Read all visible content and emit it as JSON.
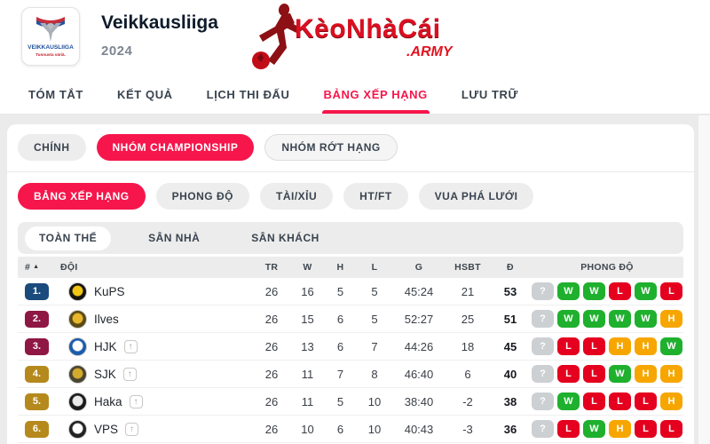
{
  "header": {
    "league_name": "Veikkausliiga",
    "season": "2024",
    "logo_text": "VEIKKAUSLIIGA",
    "logo_tagline": "Tunnusta väriä.",
    "brand_text": "KèoNhàCái",
    "brand_suffix": ".ARMY"
  },
  "nav_tabs": [
    {
      "label": "TÓM TẮT",
      "active": false
    },
    {
      "label": "KẾT QUẢ",
      "active": false
    },
    {
      "label": "LỊCH THI ĐẤU",
      "active": false
    },
    {
      "label": "BẢNG XẾP HẠNG",
      "active": true
    },
    {
      "label": "LƯU TRỮ",
      "active": false
    }
  ],
  "group_tabs": [
    {
      "label": "CHÍNH",
      "style": "default"
    },
    {
      "label": "NHÓM CHAMPIONSHIP",
      "style": "active"
    },
    {
      "label": "NHÓM RỚT HẠNG",
      "style": "outlined"
    }
  ],
  "view_tabs": [
    {
      "label": "BẢNG XẾP HẠNG",
      "style": "active"
    },
    {
      "label": "PHONG ĐỘ",
      "style": "default"
    },
    {
      "label": "TÀI/XỈU",
      "style": "default"
    },
    {
      "label": "HT/FT",
      "style": "default"
    },
    {
      "label": "VUA PHÁ LƯỚI",
      "style": "default"
    }
  ],
  "scope_tabs": [
    {
      "label": "TOÀN THỂ",
      "active": true
    },
    {
      "label": "SÂN NHÀ",
      "active": false
    },
    {
      "label": "SÂN KHÁCH",
      "active": false
    }
  ],
  "colors": {
    "accent": "#f6164b",
    "form_win": "#1fb02e",
    "form_loss": "#e4001e",
    "form_draw": "#f7a600",
    "form_unknown": "#cdd0d3"
  },
  "table": {
    "columns": [
      "#",
      "ĐỘI",
      "TR",
      "W",
      "H",
      "L",
      "G",
      "HSBT",
      "Đ",
      "PHONG ĐỘ"
    ],
    "rows": [
      {
        "rank": "1.",
        "rank_color": "#1b4a7d",
        "team": "KuPS",
        "promoted": false,
        "logo_colors": [
          "#15130e",
          "#f0c514"
        ],
        "tr": "26",
        "w": "16",
        "h": "5",
        "l": "5",
        "g": "45:24",
        "hsbt": "21",
        "d": "53",
        "form": [
          "?",
          "W",
          "W",
          "L",
          "W",
          "L"
        ]
      },
      {
        "rank": "2.",
        "rank_color": "#8e1743",
        "team": "Ilves",
        "promoted": false,
        "logo_colors": [
          "#5a4a14",
          "#e8b62a"
        ],
        "tr": "26",
        "w": "15",
        "h": "6",
        "l": "5",
        "g": "52:27",
        "hsbt": "25",
        "d": "51",
        "form": [
          "?",
          "W",
          "W",
          "W",
          "W",
          "H"
        ]
      },
      {
        "rank": "3.",
        "rank_color": "#8e1743",
        "team": "HJK",
        "promoted": true,
        "logo_colors": [
          "#1b5cab",
          "#ffffff"
        ],
        "tr": "26",
        "w": "13",
        "h": "6",
        "l": "7",
        "g": "44:26",
        "hsbt": "18",
        "d": "45",
        "form": [
          "?",
          "L",
          "L",
          "H",
          "H",
          "W"
        ]
      },
      {
        "rank": "4.",
        "rank_color": "#b5891c",
        "team": "SJK",
        "promoted": true,
        "logo_colors": [
          "#4a4430",
          "#d3aa2e"
        ],
        "tr": "26",
        "w": "11",
        "h": "7",
        "l": "8",
        "g": "46:40",
        "hsbt": "6",
        "d": "40",
        "form": [
          "?",
          "L",
          "L",
          "W",
          "H",
          "H"
        ]
      },
      {
        "rank": "5.",
        "rank_color": "#b5891c",
        "team": "Haka",
        "promoted": true,
        "logo_colors": [
          "#1a1a1a",
          "#e9e9e9"
        ],
        "tr": "26",
        "w": "11",
        "h": "5",
        "l": "10",
        "g": "38:40",
        "hsbt": "-2",
        "d": "38",
        "form": [
          "?",
          "W",
          "L",
          "L",
          "L",
          "H"
        ]
      },
      {
        "rank": "6.",
        "rank_color": "#b5891c",
        "team": "VPS",
        "promoted": true,
        "logo_colors": [
          "#222222",
          "#ffffff"
        ],
        "tr": "26",
        "w": "10",
        "h": "6",
        "l": "10",
        "g": "40:43",
        "hsbt": "-3",
        "d": "36",
        "form": [
          "?",
          "L",
          "W",
          "H",
          "L",
          "L"
        ]
      }
    ]
  }
}
